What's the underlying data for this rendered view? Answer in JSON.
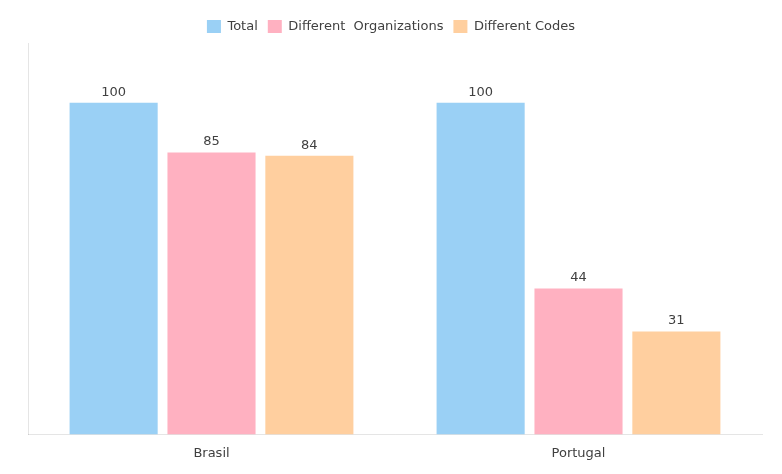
{
  "chart_data": {
    "type": "bar",
    "categories": [
      "Brasil",
      "Portugal"
    ],
    "series": [
      {
        "name": "Total",
        "values": [
          100,
          100
        ]
      },
      {
        "name": "Different  Organizations",
        "values": [
          85,
          44
        ]
      },
      {
        "name": "Different Codes",
        "values": [
          84,
          31
        ]
      }
    ],
    "ylim": [
      0,
      118
    ],
    "grid": false,
    "legend": "top",
    "data_labels": true,
    "tick_labels": "x"
  }
}
